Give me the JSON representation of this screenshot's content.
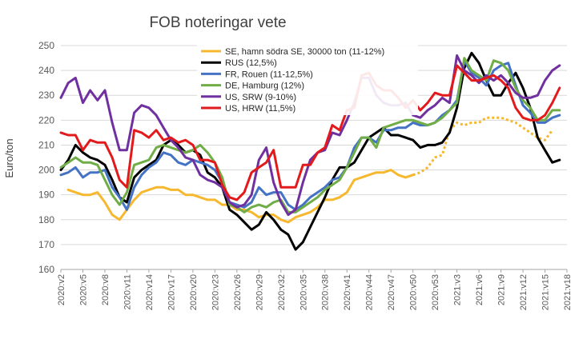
{
  "chart_data": {
    "type": "line",
    "title": "FOB noteringar vete",
    "xlabel": "",
    "ylabel": "Euro/ton",
    "ylim": [
      160,
      250
    ],
    "yticks": [
      160,
      170,
      180,
      190,
      200,
      210,
      220,
      230,
      240,
      250
    ],
    "grid": "horizontal",
    "legend_position": "top-center",
    "x_tick_labels": [
      "2020:v2",
      "2020:v5",
      "2020:v8",
      "2020:v11",
      "2020:v14",
      "2020:v17",
      "2020:v20",
      "2020:v23",
      "2020:v26",
      "2020:v29",
      "2020:v32",
      "2020:v35",
      "2020:v38",
      "2020:v41",
      "2020:v44",
      "2020:v47",
      "2020:v50",
      "2020:v53",
      "2021:v3",
      "2021:v6",
      "2021:v9",
      "2021:v12",
      "2021:v15",
      "2021:v18"
    ],
    "x_labels": [
      "2020:v2",
      "2020:v3",
      "2020:v4",
      "2020:v5",
      "2020:v6",
      "2020:v7",
      "2020:v8",
      "2020:v9",
      "2020:v10",
      "2020:v11",
      "2020:v12",
      "2020:v13",
      "2020:v14",
      "2020:v15",
      "2020:v16",
      "2020:v17",
      "2020:v18",
      "2020:v19",
      "2020:v20",
      "2020:v21",
      "2020:v22",
      "2020:v23",
      "2020:v24",
      "2020:v25",
      "2020:v26",
      "2020:v27",
      "2020:v28",
      "2020:v29",
      "2020:v30",
      "2020:v31",
      "2020:v32",
      "2020:v33",
      "2020:v34",
      "2020:v35",
      "2020:v36",
      "2020:v37",
      "2020:v38",
      "2020:v39",
      "2020:v40",
      "2020:v41",
      "2020:v42",
      "2020:v43",
      "2020:v44",
      "2020:v45",
      "2020:v46",
      "2020:v47",
      "2020:v48",
      "2020:v49",
      "2020:v50",
      "2020:v51",
      "2020:v52",
      "2020:v53",
      "2021:v1",
      "2021:v2",
      "2021:v3",
      "2021:v4",
      "2021:v5",
      "2021:v6",
      "2021:v7",
      "2021:v8",
      "2021:v9",
      "2021:v10",
      "2021:v11",
      "2021:v12",
      "2021:v13",
      "2021:v14",
      "2021:v15",
      "2021:v16",
      "2021:v17",
      "2021:v18"
    ],
    "series": [
      {
        "name": "SE, hamn södra SE, 30000 ton (11-12%)",
        "color": "#f5b82e",
        "dashed_after_index": 48,
        "values": [
          null,
          192,
          191,
          190,
          190,
          191,
          187,
          182,
          180,
          184,
          188,
          191,
          192,
          193,
          193,
          192,
          192,
          190,
          190,
          189,
          188,
          188,
          186,
          186,
          184,
          184,
          183,
          181,
          182,
          182,
          180,
          179,
          181,
          182,
          183,
          185,
          188,
          188,
          189,
          191,
          196,
          197,
          198,
          199,
          199,
          200,
          198,
          197,
          198,
          199,
          201,
          205,
          206,
          216,
          219,
          218,
          219,
          219,
          221,
          221,
          221,
          220,
          219,
          217,
          215,
          213,
          212,
          216,
          null,
          null
        ]
      },
      {
        "name": "RUS (12,5%)",
        "color": "#000000",
        "values": [
          200,
          204,
          210,
          207,
          205,
          204,
          202,
          196,
          189,
          187,
          197,
          200,
          202,
          204,
          210,
          212,
          210,
          207,
          208,
          206,
          199,
          197,
          193,
          184,
          182,
          179,
          176,
          178,
          183,
          180,
          176,
          174,
          168,
          171,
          177,
          183,
          189,
          196,
          201,
          201,
          203,
          208,
          213,
          215,
          217,
          214,
          214,
          213,
          212,
          209,
          210,
          210,
          211,
          215,
          225,
          241,
          247,
          243,
          236,
          230,
          230,
          235,
          239,
          233,
          225,
          213,
          208,
          203,
          204,
          null
        ]
      },
      {
        "name": "FR, Rouen (11-12,5%)",
        "color": "#4472c4",
        "values": [
          198,
          199,
          201,
          197,
          199,
          199,
          200,
          193,
          189,
          184,
          193,
          198,
          201,
          203,
          207,
          206,
          203,
          202,
          204,
          203,
          202,
          200,
          195,
          187,
          186,
          185,
          187,
          193,
          190,
          191,
          191,
          186,
          184,
          186,
          189,
          191,
          193,
          196,
          197,
          201,
          209,
          213,
          213,
          211,
          216,
          216,
          217,
          217,
          219,
          218,
          218,
          219,
          222,
          224,
          228,
          244,
          239,
          237,
          234,
          240,
          242,
          243,
          234,
          226,
          223,
          219,
          219,
          221,
          222,
          null
        ]
      },
      {
        "name": "DE, Hamburg (12%)",
        "color": "#70ad47",
        "values": [
          201,
          203,
          205,
          203,
          203,
          202,
          196,
          190,
          186,
          191,
          202,
          203,
          204,
          209,
          210,
          209,
          208,
          207,
          208,
          210,
          207,
          203,
          197,
          186,
          185,
          183,
          185,
          186,
          185,
          187,
          188,
          183,
          183,
          185,
          187,
          189,
          192,
          194,
          196,
          201,
          207,
          213,
          213,
          209,
          217,
          218,
          219,
          220,
          220,
          219,
          218,
          219,
          221,
          224,
          227,
          245,
          240,
          238,
          236,
          244,
          243,
          240,
          233,
          228,
          225,
          220,
          220,
          224,
          224,
          null
        ]
      },
      {
        "name": "US, SRW (9-10%)",
        "color": "#7030a0",
        "values": [
          229,
          235,
          237,
          227,
          232,
          228,
          232,
          219,
          208,
          208,
          223,
          226,
          225,
          222,
          217,
          212,
          209,
          205,
          204,
          198,
          196,
          195,
          193,
          187,
          185,
          186,
          190,
          204,
          209,
          195,
          187,
          182,
          184,
          195,
          204,
          207,
          208,
          215,
          214,
          220,
          227,
          237,
          237,
          230,
          227,
          226,
          226,
          227,
          222,
          221,
          224,
          226,
          229,
          227,
          246,
          240,
          238,
          235,
          238,
          236,
          238,
          235,
          231,
          229,
          229,
          230,
          236,
          240,
          242,
          null
        ]
      },
      {
        "name": "US, HRW (11,5%)",
        "color": "#e31a1c",
        "values": [
          215,
          214,
          214,
          208,
          212,
          211,
          211,
          205,
          196,
          193,
          216,
          215,
          213,
          216,
          212,
          213,
          211,
          212,
          210,
          204,
          204,
          203,
          194,
          189,
          188,
          191,
          199,
          201,
          203,
          208,
          193,
          193,
          193,
          202,
          202,
          207,
          209,
          218,
          216,
          224,
          225,
          238,
          239,
          234,
          232,
          232,
          229,
          225,
          228,
          224,
          227,
          231,
          230,
          230,
          242,
          239,
          236,
          236,
          237,
          238,
          236,
          233,
          225,
          221,
          220,
          220,
          222,
          227,
          233,
          null
        ]
      }
    ]
  }
}
